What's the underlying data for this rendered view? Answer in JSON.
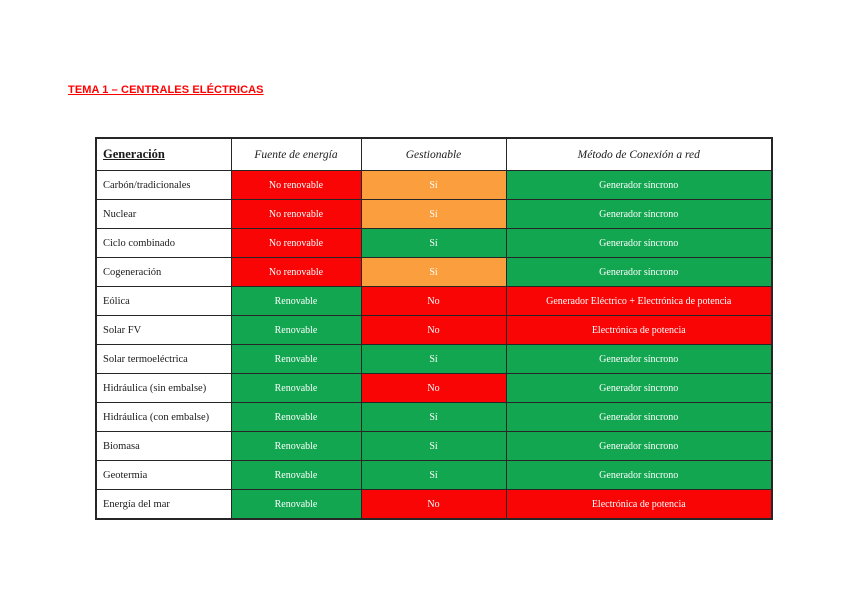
{
  "doc": {
    "title": "TEMA 1 – CENTRALES ELÉCTRICAS"
  },
  "table": {
    "headers": [
      "Generación",
      "Fuente de energía",
      "Gestionable",
      "Método de Conexión a red"
    ],
    "colors": {
      "red": "#f90505",
      "orange": "#fb9e3d",
      "green": "#12a650"
    },
    "rows": [
      {
        "label": "Carbón/tradicionales",
        "cells": [
          {
            "text": "No renovable",
            "color": "red"
          },
          {
            "text": "Sí",
            "color": "orange"
          },
          {
            "text": "Generador síncrono",
            "color": "green"
          }
        ]
      },
      {
        "label": "Nuclear",
        "cells": [
          {
            "text": "No renovable",
            "color": "red"
          },
          {
            "text": "Sí",
            "color": "orange"
          },
          {
            "text": "Generador síncrono",
            "color": "green"
          }
        ]
      },
      {
        "label": "Ciclo combinado",
        "cells": [
          {
            "text": "No renovable",
            "color": "red"
          },
          {
            "text": "Sí",
            "color": "green"
          },
          {
            "text": "Generador síncrono",
            "color": "green"
          }
        ]
      },
      {
        "label": "Cogeneración",
        "cells": [
          {
            "text": "No renovable",
            "color": "red"
          },
          {
            "text": "Sí",
            "color": "orange"
          },
          {
            "text": "Generador síncrono",
            "color": "green"
          }
        ]
      },
      {
        "label": "Eólica",
        "cells": [
          {
            "text": "Renovable",
            "color": "green"
          },
          {
            "text": "No",
            "color": "red"
          },
          {
            "text": "Generador Eléctrico + Electrónica de potencia",
            "color": "red"
          }
        ]
      },
      {
        "label": "Solar FV",
        "cells": [
          {
            "text": "Renovable",
            "color": "green"
          },
          {
            "text": "No",
            "color": "red"
          },
          {
            "text": "Electrónica de potencia",
            "color": "red"
          }
        ]
      },
      {
        "label": "Solar termoeléctrica",
        "cells": [
          {
            "text": "Renovable",
            "color": "green"
          },
          {
            "text": "Sí",
            "color": "green"
          },
          {
            "text": "Generador síncrono",
            "color": "green"
          }
        ]
      },
      {
        "label": "Hidráulica (sin embalse)",
        "cells": [
          {
            "text": "Renovable",
            "color": "green"
          },
          {
            "text": "No",
            "color": "red"
          },
          {
            "text": "Generador síncrono",
            "color": "green"
          }
        ]
      },
      {
        "label": "Hidráulica (con embalse)",
        "cells": [
          {
            "text": "Renovable",
            "color": "green"
          },
          {
            "text": "Sí",
            "color": "green"
          },
          {
            "text": "Generador síncrono",
            "color": "green"
          }
        ]
      },
      {
        "label": "Biomasa",
        "cells": [
          {
            "text": "Renovable",
            "color": "green"
          },
          {
            "text": "Sí",
            "color": "green"
          },
          {
            "text": "Generador síncrono",
            "color": "green"
          }
        ]
      },
      {
        "label": "Geotermia",
        "cells": [
          {
            "text": "Renovable",
            "color": "green"
          },
          {
            "text": "Sí",
            "color": "green"
          },
          {
            "text": "Generador síncrono",
            "color": "green"
          }
        ]
      },
      {
        "label": "Energía del mar",
        "cells": [
          {
            "text": "Renovable",
            "color": "green"
          },
          {
            "text": "No",
            "color": "red"
          },
          {
            "text": "Electrónica de potencia",
            "color": "red"
          }
        ]
      }
    ]
  }
}
